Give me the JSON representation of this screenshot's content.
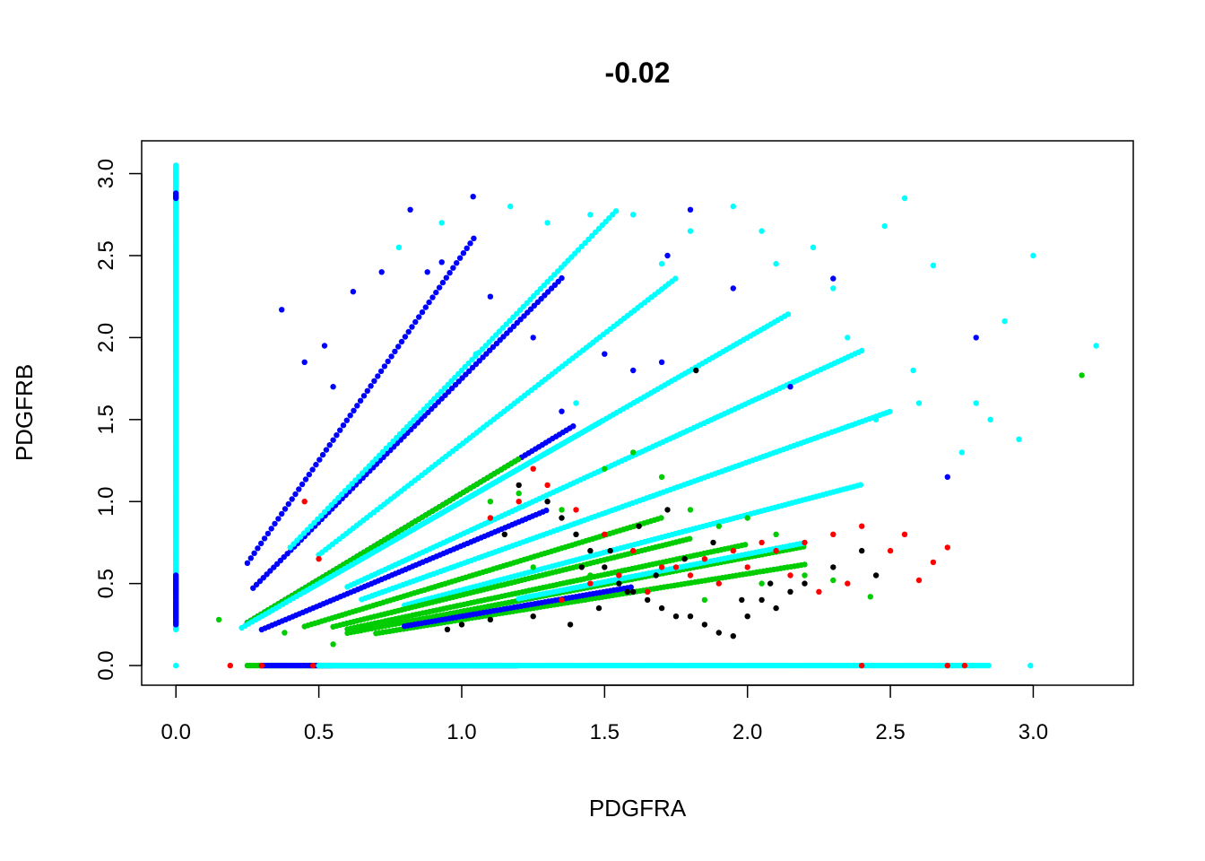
{
  "chart_data": {
    "type": "scatter",
    "title": "-0.02",
    "xlabel": "PDGFRA",
    "ylabel": "PDGFRB",
    "xlim": [
      -0.12,
      3.35
    ],
    "ylim": [
      -0.12,
      3.2
    ],
    "xticks": [
      "0.0",
      "0.5",
      "1.0",
      "1.5",
      "2.0",
      "2.5",
      "3.0"
    ],
    "yticks": [
      "0.0",
      "0.5",
      "1.0",
      "1.5",
      "2.0",
      "2.5",
      "3.0"
    ],
    "grid": false,
    "legend": "none",
    "palette": {
      "black": "#000000",
      "red": "#ff0000",
      "green": "#00cd00",
      "blue": "#0000ff",
      "cyan": "#00ffff"
    },
    "series": [
      {
        "color": "black",
        "x": [
          1.2,
          1.3,
          1.35,
          1.4,
          1.45,
          1.5,
          1.55,
          1.6,
          1.65,
          1.7,
          1.75,
          1.8,
          1.85,
          1.9,
          1.95,
          2.0,
          2.05,
          2.1,
          2.15,
          2.2,
          2.3,
          2.4,
          2.45,
          1.25,
          1.38,
          1.48,
          1.58,
          1.68,
          1.78,
          1.88,
          1.98,
          2.08,
          1.15,
          1.0,
          1.1,
          0.95,
          1.42,
          1.52,
          1.62,
          1.72,
          1.82
        ],
        "y": [
          1.1,
          1.0,
          0.9,
          0.8,
          0.7,
          0.6,
          0.5,
          0.45,
          0.4,
          0.35,
          0.3,
          0.3,
          0.25,
          0.2,
          0.18,
          0.3,
          0.4,
          0.35,
          0.45,
          0.5,
          0.6,
          0.7,
          0.55,
          0.3,
          0.25,
          0.35,
          0.45,
          0.55,
          0.65,
          0.75,
          0.4,
          0.5,
          0.8,
          0.25,
          0.28,
          0.22,
          0.6,
          0.7,
          0.85,
          0.95,
          1.8
        ]
      },
      {
        "color": "red",
        "x": [
          0.19,
          0.3,
          0.45,
          0.5,
          1.1,
          1.2,
          1.25,
          1.3,
          1.4,
          1.5,
          1.6,
          1.7,
          1.8,
          1.9,
          2.0,
          2.1,
          2.2,
          2.3,
          2.4,
          2.5,
          2.55,
          2.6,
          2.65,
          2.7,
          0.48,
          1.35,
          1.45,
          1.55,
          1.65,
          1.75,
          1.85,
          1.95,
          2.05,
          2.15,
          2.25,
          2.35,
          2.4,
          2.7,
          2.76
        ],
        "y": [
          0.0,
          0.0,
          1.0,
          0.65,
          0.9,
          1.0,
          1.2,
          1.1,
          0.95,
          0.8,
          0.7,
          0.6,
          0.55,
          0.5,
          0.6,
          0.7,
          0.75,
          0.8,
          0.85,
          0.7,
          0.8,
          0.52,
          0.63,
          0.72,
          0.0,
          0.4,
          0.5,
          0.55,
          0.45,
          0.6,
          0.65,
          0.7,
          0.75,
          0.55,
          0.45,
          0.5,
          0.0,
          0.0,
          0.0
        ]
      }
    ],
    "vertical_band": [
      {
        "color": "cyan",
        "x": 0.0,
        "y_from": 0.22,
        "y_to": 3.05
      },
      {
        "color": "blue",
        "x": 0.0,
        "y_from": 0.25,
        "y_to": 0.55
      },
      {
        "color": "blue",
        "x": 0.0,
        "y_from": 2.85,
        "y_to": 2.88
      }
    ],
    "ray_series": [
      {
        "color": "blue",
        "x_start": 0.25,
        "x_end": 1.05,
        "slope": 2.5
      },
      {
        "color": "blue",
        "x_start": 0.27,
        "x_end": 1.35,
        "slope": 1.75
      },
      {
        "color": "cyan",
        "x_start": 0.4,
        "x_end": 1.55,
        "slope": 1.8
      },
      {
        "color": "cyan",
        "x_start": 0.5,
        "x_end": 1.75,
        "slope": 1.35
      },
      {
        "color": "cyan",
        "x_start": 0.45,
        "x_end": 2.15,
        "slope": 1.0
      },
      {
        "color": "blue",
        "x_start": 0.25,
        "x_end": 1.4,
        "slope": 1.05
      },
      {
        "color": "green",
        "x_start": 0.25,
        "x_end": 1.2,
        "slope": 1.05
      },
      {
        "color": "cyan",
        "x_start": 0.6,
        "x_end": 2.4,
        "slope": 0.8
      },
      {
        "color": "blue",
        "x_start": 0.3,
        "x_end": 1.3,
        "slope": 0.73
      },
      {
        "color": "cyan",
        "x_start": 0.65,
        "x_end": 2.5,
        "slope": 0.62
      },
      {
        "color": "green",
        "x_start": 0.45,
        "x_end": 1.7,
        "slope": 0.53
      },
      {
        "color": "cyan",
        "x_start": 0.8,
        "x_end": 2.4,
        "slope": 0.46
      },
      {
        "color": "green",
        "x_start": 0.55,
        "x_end": 1.8,
        "slope": 0.43
      },
      {
        "color": "green",
        "x_start": 0.6,
        "x_end": 2.0,
        "slope": 0.37
      },
      {
        "color": "green",
        "x_start": 0.6,
        "x_end": 2.2,
        "slope": 0.33
      },
      {
        "color": "green",
        "x_start": 0.7,
        "x_end": 2.2,
        "slope": 0.28
      },
      {
        "color": "cyan",
        "x_start": 1.2,
        "x_end": 2.2,
        "slope": 0.34
      },
      {
        "color": "blue",
        "x_start": 0.8,
        "x_end": 1.6,
        "slope": 0.3
      },
      {
        "color": "cyan",
        "x_start": 0.23,
        "x_end": 1.5,
        "slope": 1.0
      }
    ],
    "horizontal_band": [
      {
        "color": "green",
        "y": 0.0,
        "x_from": 0.25,
        "x_to": 0.55
      },
      {
        "color": "blue",
        "y": 0.0,
        "x_from": 0.3,
        "x_to": 1.2
      },
      {
        "color": "cyan",
        "y": 0.0,
        "x_from": 0.5,
        "x_to": 2.85
      },
      {
        "color": "cyan",
        "y": 0.0,
        "x_from": 2.99,
        "x_to": 2.99
      }
    ],
    "scatter_extra": [
      {
        "color": "cyan",
        "x": [
          0.0,
          0.78,
          0.93,
          1.17,
          1.3,
          1.45,
          1.7,
          1.8,
          2.05,
          2.1,
          2.23,
          2.3,
          2.48,
          2.55,
          2.58,
          2.65,
          2.9,
          2.95,
          3.0,
          3.22,
          2.75,
          2.85,
          2.8,
          2.6,
          2.45,
          2.35,
          1.6,
          1.4,
          1.05,
          1.95
        ],
        "y": [
          0.0,
          2.55,
          2.7,
          2.8,
          2.7,
          2.75,
          2.45,
          2.65,
          2.65,
          2.45,
          2.55,
          2.3,
          2.68,
          2.85,
          1.8,
          2.44,
          2.1,
          1.38,
          2.5,
          1.95,
          1.3,
          1.5,
          1.6,
          1.6,
          1.5,
          2.0,
          2.75,
          1.6,
          1.9,
          2.8
        ]
      },
      {
        "color": "blue",
        "x": [
          0.37,
          0.52,
          0.62,
          0.72,
          0.82,
          0.93,
          1.04,
          1.1,
          1.25,
          1.35,
          1.5,
          1.6,
          1.72,
          1.8,
          1.95,
          2.15,
          2.3,
          2.7,
          2.8,
          0.45,
          0.55,
          0.88,
          1.7
        ],
        "y": [
          2.17,
          1.95,
          2.28,
          2.4,
          2.78,
          2.46,
          2.86,
          2.25,
          2.0,
          1.55,
          1.9,
          1.8,
          2.5,
          2.78,
          2.3,
          1.7,
          2.36,
          1.15,
          2.0,
          1.85,
          1.7,
          2.4,
          1.85
        ]
      },
      {
        "color": "green",
        "x": [
          0.15,
          0.38,
          0.55,
          1.1,
          1.2,
          1.35,
          1.5,
          1.6,
          1.7,
          1.8,
          1.9,
          2.0,
          2.1,
          2.2,
          2.3,
          2.43,
          3.17,
          1.25,
          1.45,
          1.65,
          1.85,
          2.05
        ],
        "y": [
          0.28,
          0.2,
          0.13,
          1.0,
          1.05,
          0.95,
          1.2,
          1.3,
          1.15,
          0.95,
          0.85,
          0.9,
          0.8,
          0.55,
          0.52,
          0.42,
          1.77,
          0.6,
          0.55,
          0.45,
          0.4,
          0.5
        ]
      }
    ]
  }
}
